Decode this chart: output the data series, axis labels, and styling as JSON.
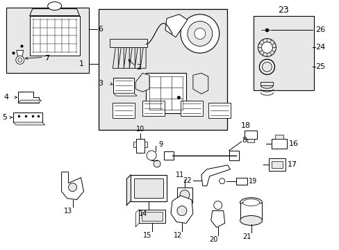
{
  "bg_color": "#ffffff",
  "fig_w": 4.89,
  "fig_h": 3.6,
  "dpi": 100,
  "gray_fill": "#e8e8e8",
  "white": "#ffffff"
}
